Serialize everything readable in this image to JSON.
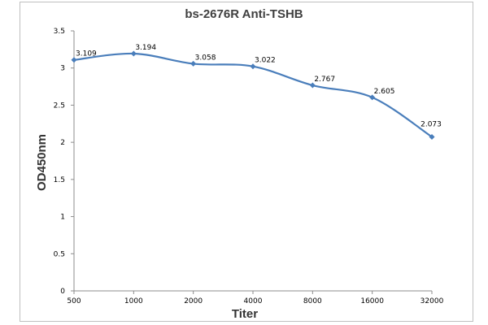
{
  "chart_data": {
    "type": "line",
    "title": "bs-2676R Anti-TSHB",
    "xlabel": "Titer",
    "ylabel": "OD450nm",
    "categories": [
      "500",
      "1000",
      "2000",
      "4000",
      "8000",
      "16000",
      "32000"
    ],
    "series": [
      {
        "values": [
          3.109,
          3.194,
          3.058,
          3.022,
          2.767,
          2.605,
          2.073
        ],
        "labels": [
          "3.109",
          "3.194",
          "3.058",
          "3.022",
          "2.767",
          "2.605",
          "2.073"
        ],
        "color": "#4a7ebb"
      }
    ],
    "ylim": [
      0,
      3.5
    ],
    "yticks": [
      "0",
      "0.5",
      "1",
      "1.5",
      "2",
      "2.5",
      "3",
      "3.5"
    ],
    "grid": false,
    "legend": "none"
  }
}
